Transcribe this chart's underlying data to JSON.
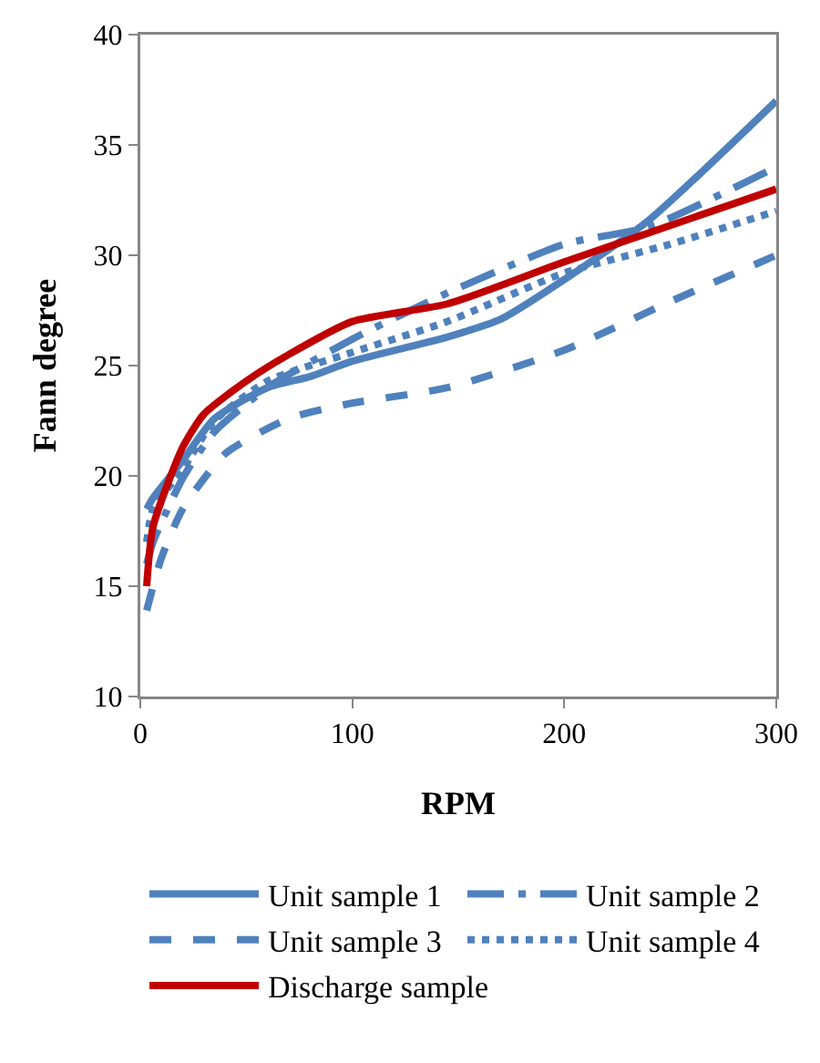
{
  "chart_data": {
    "type": "line",
    "xlabel": "RPM",
    "ylabel": "Fann degree",
    "xlim": [
      0,
      300
    ],
    "xticks": [
      0,
      100,
      200,
      300
    ],
    "ylim": [
      10,
      40
    ],
    "yticks": [
      10,
      15,
      20,
      25,
      30,
      35,
      40
    ],
    "grid": false,
    "legend": "bottom",
    "marker": "none",
    "series": [
      {
        "name": "Unit sample 1",
        "color": "#4f81bd",
        "line_style": "solid",
        "x": [
          3,
          6,
          20,
          35,
          60,
          80,
          100,
          145,
          170,
          200,
          240,
          300
        ],
        "values": [
          18.5,
          19,
          20.7,
          22.6,
          24,
          24.5,
          25.2,
          26.3,
          27.1,
          28.9,
          31.6,
          37
        ]
      },
      {
        "name": "Unit sample 2",
        "color": "#4f81bd",
        "line_style": "dashdot",
        "x": [
          3,
          6,
          20,
          35,
          60,
          100,
          145,
          200,
          240,
          300
        ],
        "values": [
          16,
          17,
          19.9,
          22,
          24,
          26.2,
          28.3,
          30.5,
          31.3,
          34
        ]
      },
      {
        "name": "Unit sample 3",
        "color": "#4f81bd",
        "line_style": "dashed",
        "x": [
          3,
          10,
          20,
          40,
          70,
          100,
          145,
          200,
          250,
          300
        ],
        "values": [
          13.9,
          16.3,
          18.5,
          21,
          22.6,
          23.3,
          24,
          25.7,
          27.9,
          30
        ]
      },
      {
        "name": "Unit sample 4",
        "color": "#4f81bd",
        "line_style": "dotted",
        "x": [
          3,
          6,
          20,
          35,
          60,
          100,
          145,
          200,
          250,
          300
        ],
        "values": [
          17,
          18.5,
          20.3,
          22.5,
          24.3,
          25.6,
          27,
          29.2,
          30.5,
          32
        ]
      },
      {
        "name": "Discharge sample",
        "color": "#c00000",
        "line_style": "solid",
        "x": [
          3,
          6,
          20,
          30,
          50,
          70,
          100,
          145,
          200,
          300
        ],
        "values": [
          15,
          17.7,
          21.3,
          22.8,
          24.3,
          25.5,
          27,
          27.8,
          29.7,
          33
        ]
      }
    ]
  }
}
